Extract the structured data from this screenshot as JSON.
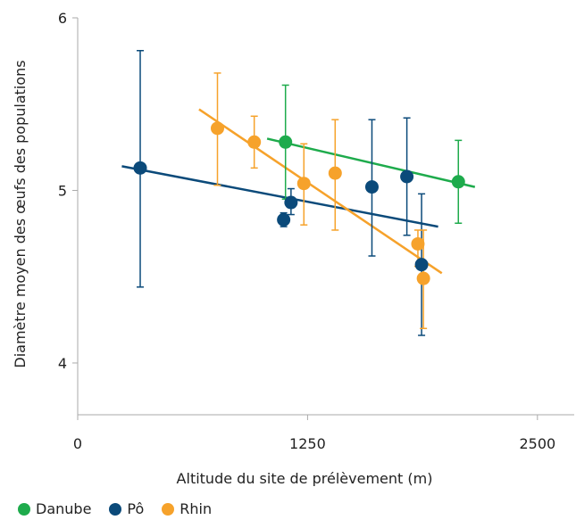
{
  "chart_data": {
    "type": "scatter",
    "xlabel": "Altitude du site de prélèvement (m)",
    "ylabel": "Diamètre moyen des œufs des populations",
    "xlim": [
      0,
      2700
    ],
    "ylim": [
      3.7,
      6
    ],
    "x_ticks": [
      0,
      1250,
      2500
    ],
    "x_tick_labels": [
      "0",
      "1250",
      "2500"
    ],
    "y_ticks": [
      4,
      5,
      6
    ],
    "y_tick_labels": [
      "4",
      "5",
      "6"
    ],
    "grid": false,
    "legend_position": "bottom-left",
    "series": [
      {
        "name": "Danube",
        "color": "#1eab4c",
        "points": [
          {
            "x": 1130,
            "y": 5.28,
            "lo": 4.95,
            "hi": 5.61
          },
          {
            "x": 2070,
            "y": 5.05,
            "lo": 4.81,
            "hi": 5.29
          }
        ],
        "trend": {
          "x": [
            1030,
            2160
          ],
          "y": [
            5.3,
            5.02
          ]
        }
      },
      {
        "name": "Pô",
        "color": "#0b4a7a",
        "points": [
          {
            "x": 340,
            "y": 5.13,
            "lo": 4.44,
            "hi": 5.81
          },
          {
            "x": 1120,
            "y": 4.83,
            "lo": 4.79,
            "hi": 4.87
          },
          {
            "x": 1160,
            "y": 4.93,
            "lo": 4.86,
            "hi": 5.01
          },
          {
            "x": 1600,
            "y": 5.02,
            "lo": 4.62,
            "hi": 5.41
          },
          {
            "x": 1790,
            "y": 5.08,
            "lo": 4.74,
            "hi": 5.42
          },
          {
            "x": 1870,
            "y": 4.57,
            "lo": 4.16,
            "hi": 4.98
          }
        ],
        "trend": {
          "x": [
            240,
            1960
          ],
          "y": [
            5.14,
            4.79
          ]
        }
      },
      {
        "name": "Rhin",
        "color": "#f6a22b",
        "points": [
          {
            "x": 760,
            "y": 5.36,
            "lo": 5.03,
            "hi": 5.68
          },
          {
            "x": 960,
            "y": 5.28,
            "lo": 5.13,
            "hi": 5.43
          },
          {
            "x": 1230,
            "y": 5.04,
            "lo": 4.8,
            "hi": 5.27
          },
          {
            "x": 1400,
            "y": 5.1,
            "lo": 4.77,
            "hi": 5.41
          },
          {
            "x": 1850,
            "y": 4.69,
            "lo": 4.56,
            "hi": 4.77
          },
          {
            "x": 1880,
            "y": 4.49,
            "lo": 4.2,
            "hi": 4.77
          }
        ],
        "trend": {
          "x": [
            660,
            1980
          ],
          "y": [
            5.47,
            4.52
          ]
        }
      }
    ]
  }
}
